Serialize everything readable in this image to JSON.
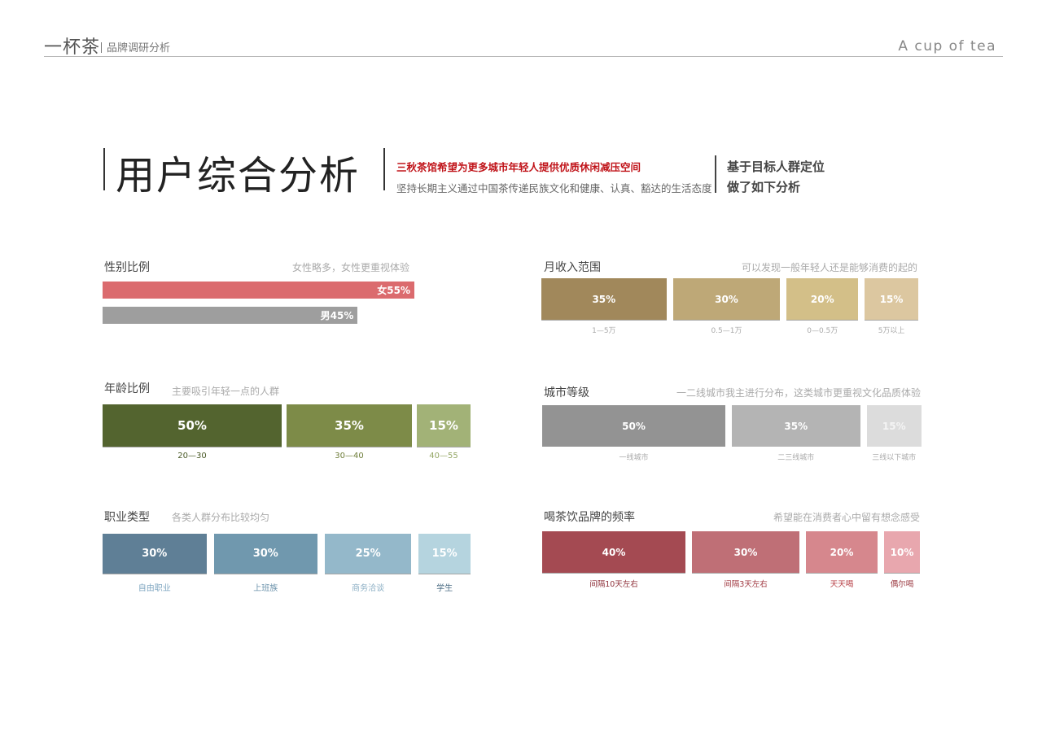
{
  "header": {
    "brand": "一杯茶",
    "subtitle": "品牌调研分析",
    "brand_en": "A cup of tea"
  },
  "title_block": {
    "title": "用户综合分析",
    "tagline": "三秋茶馆希望为更多城市年轻人提供优质休闲减压空间",
    "tagline2": "坚持长期主义通过中国茶传递民族文化和健康、认真、豁达的生活态度",
    "right_line1": "基于目标人群定位",
    "right_line2": "做了如下分析"
  },
  "colors": {
    "gender_female": "#db6b6e",
    "gender_male": "#9e9e9e",
    "age": [
      "#53642f",
      "#7d8b48",
      "#a2b277"
    ],
    "age_caption": [
      "#4a5a27",
      "#6f7e3a",
      "#95a766"
    ],
    "job": [
      "#5f7f96",
      "#7098ae",
      "#94b8ca",
      "#b5d4df"
    ],
    "job_caption": [
      "#7ea5c0",
      "#6b92ab",
      "#8fb1c6",
      "#4f6f86"
    ],
    "income": [
      "#a1885b",
      "#bea877",
      "#d3bf88",
      "#dcc7a0"
    ],
    "city": [
      "#939393",
      "#b4b4b4",
      "#dcdcdc"
    ],
    "freq": [
      "#a44a52",
      "#bf6f76",
      "#d6878d",
      "#e8a7ae"
    ],
    "freq_caption": [
      "#8e2f38",
      "#a03840",
      "#b53a40",
      "#9c3b43"
    ]
  },
  "chart_data": [
    {
      "type": "bar",
      "title": "性别比例",
      "note": "女性略多，女性更重视体验",
      "categories": [
        "女",
        "男"
      ],
      "values": [
        55,
        45
      ],
      "labels": [
        "女55%",
        "男45%"
      ],
      "unit": "%"
    },
    {
      "type": "bar",
      "title": "年龄比例",
      "note": "主要吸引年轻一点的人群",
      "categories": [
        "20—30",
        "30—40",
        "40—55"
      ],
      "values": [
        50,
        35,
        15
      ],
      "labels": [
        "50%",
        "35%",
        "15%"
      ],
      "unit": "%"
    },
    {
      "type": "bar",
      "title": "职业类型",
      "note": "各类人群分布比较均匀",
      "categories": [
        "自由职业",
        "上班族",
        "商务洽谈",
        "学生"
      ],
      "values": [
        30,
        30,
        25,
        15
      ],
      "labels": [
        "30%",
        "30%",
        "25%",
        "15%"
      ],
      "unit": "%"
    },
    {
      "type": "bar",
      "title": "月收入范围",
      "note": "可以发现一般年轻人还是能够消费的起的",
      "categories": [
        "1—5万",
        "0.5—1万",
        "0—0.5万",
        "5万以上"
      ],
      "values": [
        35,
        30,
        20,
        15
      ],
      "labels": [
        "35%",
        "30%",
        "20%",
        "15%"
      ],
      "unit": "%"
    },
    {
      "type": "bar",
      "title": "城市等级",
      "note": "一二线城市我主进行分布，这类城市更重视文化品质体验",
      "categories": [
        "一线城市",
        "二三线城市",
        "三线以下城市"
      ],
      "values": [
        50,
        35,
        15
      ],
      "labels": [
        "50%",
        "35%",
        "15%"
      ],
      "unit": "%"
    },
    {
      "type": "bar",
      "title": "喝茶饮品牌的频率",
      "note": "希望能在消费者心中留有想念感受",
      "categories": [
        "间隔10天左右",
        "间隔3天左右",
        "天天喝",
        "偶尔喝"
      ],
      "values": [
        40,
        30,
        20,
        10
      ],
      "labels": [
        "40%",
        "30%",
        "20%",
        "10%"
      ],
      "unit": "%"
    }
  ]
}
